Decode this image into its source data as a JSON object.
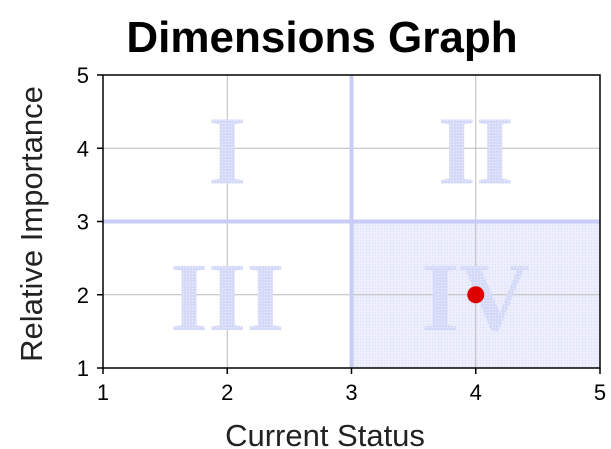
{
  "chart_data": {
    "type": "scatter",
    "title": "Dimensions Graph",
    "xlabel": "Current Status",
    "ylabel": "Relative Importance",
    "xlim": [
      1,
      5
    ],
    "ylim": [
      1,
      5
    ],
    "xticks": [
      "1",
      "2",
      "3",
      "4",
      "5"
    ],
    "yticks": [
      "1",
      "2",
      "3",
      "4",
      "5"
    ],
    "grid": true,
    "dividers": {
      "x": 3,
      "y": 3
    },
    "quadrants": [
      {
        "label": "I",
        "x_center": 2,
        "y_center": 4
      },
      {
        "label": "II",
        "x_center": 4,
        "y_center": 4
      },
      {
        "label": "III",
        "x_center": 2,
        "y_center": 2
      },
      {
        "label": "IV",
        "x_center": 4,
        "y_center": 2
      }
    ],
    "highlighted_quadrant": "IV",
    "points": [
      {
        "x": 4,
        "y": 2
      }
    ],
    "colors": {
      "point": "#dd0000",
      "divider": "#c8ccf6",
      "grid": "#bbbbbb",
      "quadrant_label": "#d2d6f8",
      "highlight": "#e6e8fb",
      "frame": "#000000"
    }
  }
}
